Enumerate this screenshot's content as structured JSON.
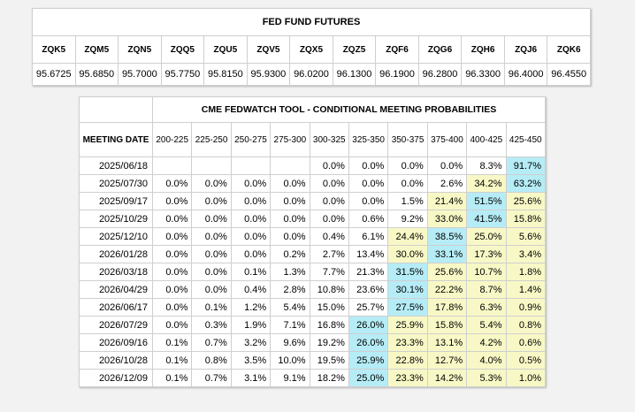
{
  "futures": {
    "title": "FED FUND FUTURES",
    "contracts": [
      "ZQK5",
      "ZQM5",
      "ZQN5",
      "ZQQ5",
      "ZQU5",
      "ZQV5",
      "ZQX5",
      "ZQZ5",
      "ZQF6",
      "ZQG6",
      "ZQH6",
      "ZQJ6",
      "ZQK6"
    ],
    "prices": [
      "95.6725",
      "95.6850",
      "95.7000",
      "95.7750",
      "95.8150",
      "95.9300",
      "96.0200",
      "96.1300",
      "96.1900",
      "96.2800",
      "96.3300",
      "96.4000",
      "96.4550"
    ]
  },
  "fedwatch": {
    "title": "CME FEDWATCH TOOL - CONDITIONAL MEETING PROBABILITIES",
    "date_header": "MEETING DATE",
    "ranges": [
      "200-225",
      "225-250",
      "250-275",
      "275-300",
      "300-325",
      "325-350",
      "350-375",
      "375-400",
      "400-425",
      "425-450"
    ],
    "highlight_colors": {
      "max": "#b5ecf6",
      "alt": "#f8f8c6"
    },
    "rows": [
      {
        "date": "2025/06/18",
        "values": [
          "",
          "",
          "",
          "",
          "0.0%",
          "0.0%",
          "0.0%",
          "0.0%",
          "8.3%",
          "91.7%"
        ],
        "hl": [
          "",
          "",
          "",
          "",
          "",
          "",
          "",
          "",
          "",
          "max"
        ]
      },
      {
        "date": "2025/07/30",
        "values": [
          "0.0%",
          "0.0%",
          "0.0%",
          "0.0%",
          "0.0%",
          "0.0%",
          "0.0%",
          "2.6%",
          "34.2%",
          "63.2%"
        ],
        "hl": [
          "",
          "",
          "",
          "",
          "",
          "",
          "",
          "",
          "alt",
          "max"
        ]
      },
      {
        "date": "2025/09/17",
        "values": [
          "0.0%",
          "0.0%",
          "0.0%",
          "0.0%",
          "0.0%",
          "0.0%",
          "1.5%",
          "21.4%",
          "51.5%",
          "25.6%"
        ],
        "hl": [
          "",
          "",
          "",
          "",
          "",
          "",
          "",
          "alt",
          "max",
          "alt"
        ]
      },
      {
        "date": "2025/10/29",
        "values": [
          "0.0%",
          "0.0%",
          "0.0%",
          "0.0%",
          "0.0%",
          "0.6%",
          "9.2%",
          "33.0%",
          "41.5%",
          "15.8%"
        ],
        "hl": [
          "",
          "",
          "",
          "",
          "",
          "",
          "",
          "alt",
          "max",
          "alt"
        ]
      },
      {
        "date": "2025/12/10",
        "values": [
          "0.0%",
          "0.0%",
          "0.0%",
          "0.0%",
          "0.4%",
          "6.1%",
          "24.4%",
          "38.5%",
          "25.0%",
          "5.6%"
        ],
        "hl": [
          "",
          "",
          "",
          "",
          "",
          "",
          "alt",
          "max",
          "alt",
          "alt"
        ]
      },
      {
        "date": "2026/01/28",
        "values": [
          "0.0%",
          "0.0%",
          "0.0%",
          "0.2%",
          "2.7%",
          "13.4%",
          "30.0%",
          "33.1%",
          "17.3%",
          "3.4%"
        ],
        "hl": [
          "",
          "",
          "",
          "",
          "",
          "",
          "alt",
          "max",
          "alt",
          "alt"
        ]
      },
      {
        "date": "2026/03/18",
        "values": [
          "0.0%",
          "0.0%",
          "0.1%",
          "1.3%",
          "7.7%",
          "21.3%",
          "31.5%",
          "25.6%",
          "10.7%",
          "1.8%"
        ],
        "hl": [
          "",
          "",
          "",
          "",
          "",
          "",
          "max",
          "alt",
          "alt",
          "alt"
        ]
      },
      {
        "date": "2026/04/29",
        "values": [
          "0.0%",
          "0.0%",
          "0.4%",
          "2.8%",
          "10.8%",
          "23.6%",
          "30.1%",
          "22.2%",
          "8.7%",
          "1.4%"
        ],
        "hl": [
          "",
          "",
          "",
          "",
          "",
          "",
          "max",
          "alt",
          "alt",
          "alt"
        ]
      },
      {
        "date": "2026/06/17",
        "values": [
          "0.0%",
          "0.1%",
          "1.2%",
          "5.4%",
          "15.0%",
          "25.7%",
          "27.5%",
          "17.8%",
          "6.3%",
          "0.9%"
        ],
        "hl": [
          "",
          "",
          "",
          "",
          "",
          "",
          "max",
          "alt",
          "alt",
          "alt"
        ]
      },
      {
        "date": "2026/07/29",
        "values": [
          "0.0%",
          "0.3%",
          "1.9%",
          "7.1%",
          "16.8%",
          "26.0%",
          "25.9%",
          "15.8%",
          "5.4%",
          "0.8%"
        ],
        "hl": [
          "",
          "",
          "",
          "",
          "",
          "max",
          "alt",
          "alt",
          "alt",
          "alt"
        ]
      },
      {
        "date": "2026/09/16",
        "values": [
          "0.1%",
          "0.7%",
          "3.2%",
          "9.6%",
          "19.2%",
          "26.0%",
          "23.3%",
          "13.1%",
          "4.2%",
          "0.6%"
        ],
        "hl": [
          "",
          "",
          "",
          "",
          "",
          "max",
          "alt",
          "alt",
          "alt",
          "alt"
        ]
      },
      {
        "date": "2026/10/28",
        "values": [
          "0.1%",
          "0.8%",
          "3.5%",
          "10.0%",
          "19.5%",
          "25.9%",
          "22.8%",
          "12.7%",
          "4.0%",
          "0.5%"
        ],
        "hl": [
          "",
          "",
          "",
          "",
          "",
          "max",
          "alt",
          "alt",
          "alt",
          "alt"
        ]
      },
      {
        "date": "2026/12/09",
        "values": [
          "0.1%",
          "0.7%",
          "3.1%",
          "9.1%",
          "18.2%",
          "25.0%",
          "23.3%",
          "14.2%",
          "5.3%",
          "1.0%"
        ],
        "hl": [
          "",
          "",
          "",
          "",
          "",
          "max",
          "alt",
          "alt",
          "alt",
          "alt"
        ]
      }
    ]
  }
}
